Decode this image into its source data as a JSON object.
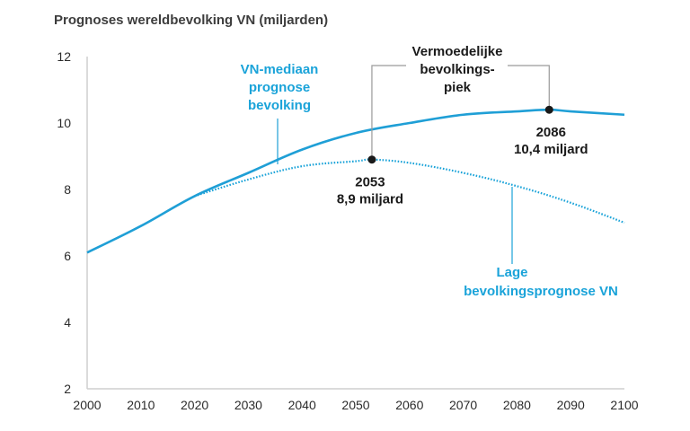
{
  "chart_data": {
    "type": "line",
    "title": "Prognoses wereldbevolking VN (miljarden)",
    "xlabel": "",
    "ylabel": "",
    "xlim": [
      2000,
      2100
    ],
    "ylim": [
      2,
      12
    ],
    "x_ticks": [
      "2000",
      "2010",
      "2020",
      "2030",
      "2040",
      "2050",
      "2060",
      "2070",
      "2080",
      "2090",
      "2100"
    ],
    "y_ticks": [
      "2",
      "4",
      "6",
      "8",
      "10",
      "12"
    ],
    "grid": false,
    "colors": {
      "median": "#1f9fd6",
      "low": "#1aa3d9",
      "annotation": "#1a1a1a",
      "axis": "#cfcfcf"
    },
    "series": [
      {
        "key": "median",
        "style": "solid",
        "x": [
          2000,
          2010,
          2020,
          2030,
          2040,
          2050,
          2060,
          2070,
          2080,
          2086,
          2090,
          2100
        ],
        "values": [
          6.1,
          6.9,
          7.8,
          8.5,
          9.2,
          9.7,
          10.0,
          10.25,
          10.35,
          10.4,
          10.35,
          10.25
        ]
      },
      {
        "key": "low",
        "style": "dotted",
        "x": [
          2020,
          2030,
          2040,
          2050,
          2053,
          2060,
          2070,
          2080,
          2090,
          2100
        ],
        "values": [
          7.8,
          8.3,
          8.7,
          8.85,
          8.9,
          8.8,
          8.5,
          8.1,
          7.6,
          7.0
        ]
      }
    ],
    "annotations": {
      "median_label": [
        "VN-mediaan",
        "prognose",
        "bevolking"
      ],
      "low_label": [
        "Lage",
        "bevolkingsprognose VN"
      ],
      "peak_label": [
        "Vermoedelijke",
        "bevolkings-",
        "piek"
      ],
      "peak_low": {
        "x": 2053,
        "y": 8.9,
        "lines": [
          "2053",
          "8,9 miljard"
        ]
      },
      "peak_median": {
        "x": 2086,
        "y": 10.4,
        "lines": [
          "2086",
          "10,4 miljard"
        ]
      }
    }
  }
}
